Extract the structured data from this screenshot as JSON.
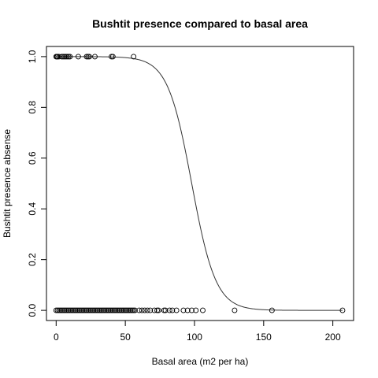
{
  "chart_data": {
    "type": "scatter",
    "title": "Bushtit presence compared to basal area",
    "xlabel": "Basal area (m2 per ha)",
    "ylabel": "Bushtit presence absense",
    "xlim": [
      -7,
      215
    ],
    "ylim": [
      -0.04,
      1.04
    ],
    "xticks": [
      0,
      50,
      100,
      150,
      200
    ],
    "yticks": [
      0.0,
      0.2,
      0.4,
      0.6,
      0.8,
      1.0
    ],
    "xtick_labels": [
      "0",
      "50",
      "100",
      "150",
      "200"
    ],
    "ytick_labels": [
      "0.0",
      "0.2",
      "0.4",
      "0.6",
      "0.8",
      "1.0"
    ],
    "grid": false,
    "points_present": {
      "x": [
        0,
        0.5,
        1,
        2,
        4,
        5,
        6,
        7,
        8,
        9,
        10,
        16,
        22,
        23,
        24,
        28,
        40,
        41,
        56
      ],
      "y": [
        1,
        1,
        1,
        1,
        1,
        1,
        1,
        1,
        1,
        1,
        1,
        1,
        1,
        1,
        1,
        1,
        1,
        1,
        1
      ]
    },
    "points_absent": {
      "x": [
        0,
        1,
        2,
        3,
        4,
        5,
        6,
        7,
        8,
        9,
        10,
        11,
        12,
        13,
        14,
        15,
        16,
        17,
        18,
        19,
        20,
        21,
        22,
        23,
        24,
        25,
        26,
        27,
        28,
        29,
        30,
        31,
        32,
        33,
        34,
        35,
        36,
        37,
        38,
        39,
        40,
        41,
        42,
        43,
        44,
        45,
        46,
        47,
        48,
        49,
        50,
        51,
        52,
        53,
        54,
        55,
        56,
        57,
        60,
        62,
        64,
        66,
        68,
        71,
        73,
        74,
        78,
        79,
        82,
        84,
        87,
        92,
        95,
        98,
        101,
        106,
        129,
        156,
        207
      ],
      "y": [
        0,
        0,
        0,
        0,
        0,
        0,
        0,
        0,
        0,
        0,
        0,
        0,
        0,
        0,
        0,
        0,
        0,
        0,
        0,
        0,
        0,
        0,
        0,
        0,
        0,
        0,
        0,
        0,
        0,
        0,
        0,
        0,
        0,
        0,
        0,
        0,
        0,
        0,
        0,
        0,
        0,
        0,
        0,
        0,
        0,
        0,
        0,
        0,
        0,
        0,
        0,
        0,
        0,
        0,
        0,
        0,
        0,
        0,
        0,
        0,
        0,
        0,
        0,
        0,
        0,
        0,
        0,
        0,
        0,
        0,
        0,
        0,
        0,
        0,
        0,
        0,
        0,
        0,
        0
      ]
    },
    "fitted_curve": {
      "model": "logistic",
      "midpoint_x": 98,
      "slope": -0.115,
      "x_range": [
        0,
        207
      ]
    }
  }
}
